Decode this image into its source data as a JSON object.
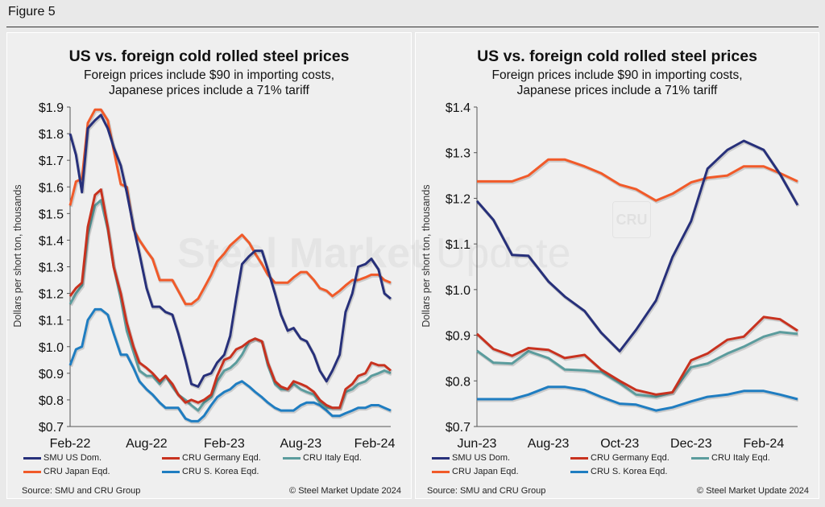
{
  "figure_title": "Figure 5",
  "watermark": {
    "text_bold": "Steel Market",
    "text_light": "Update",
    "logo": "CRU"
  },
  "colors": {
    "SMU US Dom.": "#27307a",
    "CRU Germany Eqd.": "#c8321f",
    "CRU Italy Eqd.": "#5b9c9d",
    "CRU Japan Eqd.": "#f15a29",
    "CRU S. Korea Eqd.": "#1f7dc1"
  },
  "panels": [
    {
      "title": "US vs. foreign cold rolled steel prices",
      "subtitle_line1": "Foreign prices include $90 in importing costs,",
      "subtitle_line2": "Japanese prices include a 71% tariff",
      "source": "Source: SMU and CRU Group",
      "copyright": "© Steel Market Update 2024",
      "legend": [
        "SMU US Dom.",
        "CRU Germany Eqd.",
        "CRU Italy Eqd.",
        "CRU Japan Eqd.",
        "CRU S. Korea Eqd."
      ]
    },
    {
      "title": "US vs. foreign cold rolled steel prices",
      "subtitle_line1": "Foreign prices include $90 in importing costs,",
      "subtitle_line2": "Japanese prices include a 71% tariff",
      "source": "Source: SMU and CRU Group",
      "copyright": "© Steel Market Update 2024",
      "legend": [
        "SMU US Dom.",
        "CRU Germany Eqd.",
        "CRU Italy Eqd.",
        "CRU Japan Eqd.",
        "CRU S. Korea Eqd."
      ]
    }
  ],
  "chart_data": [
    {
      "type": "line",
      "title": "US vs. foreign cold rolled steel prices",
      "ylabel": "Dollars per short ton, thousands",
      "ylim": [
        0.7,
        1.9
      ],
      "yticks": [
        "$0.7",
        "$0.8",
        "$0.9",
        "$1.0",
        "$1.1",
        "$1.2",
        "$1.3",
        "$1.4",
        "$1.5",
        "$1.6",
        "$1.7",
        "$1.8",
        "$1.9"
      ],
      "ytick_values": [
        0.7,
        0.8,
        0.9,
        1.0,
        1.1,
        1.2,
        1.3,
        1.4,
        1.5,
        1.6,
        1.7,
        1.8,
        1.9
      ],
      "xlim": [
        "2022-02-01",
        "2024-03-01"
      ],
      "xticks": [
        {
          "label": "Feb-22",
          "date": "2022-02-01"
        },
        {
          "label": "Aug-22",
          "date": "2022-08-01"
        },
        {
          "label": "Feb-23",
          "date": "2023-02-01"
        },
        {
          "label": "Aug-23",
          "date": "2023-08-01"
        },
        {
          "label": "Feb-24",
          "date": "2024-02-01"
        }
      ],
      "grid": false,
      "legend_position": "bottom",
      "x": [
        "2022-02-01",
        "2022-02-15",
        "2022-03-01",
        "2022-03-15",
        "2022-04-01",
        "2022-04-15",
        "2022-05-01",
        "2022-05-15",
        "2022-06-01",
        "2022-06-15",
        "2022-07-01",
        "2022-07-15",
        "2022-08-01",
        "2022-08-15",
        "2022-09-01",
        "2022-09-15",
        "2022-10-01",
        "2022-10-15",
        "2022-11-01",
        "2022-11-15",
        "2022-12-01",
        "2022-12-15",
        "2023-01-01",
        "2023-01-15",
        "2023-02-01",
        "2023-02-15",
        "2023-03-01",
        "2023-03-15",
        "2023-04-01",
        "2023-04-15",
        "2023-05-01",
        "2023-05-15",
        "2023-06-01",
        "2023-06-15",
        "2023-07-01",
        "2023-07-15",
        "2023-08-01",
        "2023-08-15",
        "2023-09-01",
        "2023-09-15",
        "2023-10-01",
        "2023-10-15",
        "2023-11-01",
        "2023-11-15",
        "2023-12-01",
        "2023-12-15",
        "2024-01-01",
        "2024-01-15",
        "2024-02-01",
        "2024-02-15",
        "2024-03-01"
      ],
      "series": [
        {
          "name": "SMU US Dom.",
          "values": [
            1.8,
            1.72,
            1.58,
            1.82,
            1.85,
            1.87,
            1.82,
            1.75,
            1.68,
            1.58,
            1.45,
            1.35,
            1.22,
            1.15,
            1.15,
            1.13,
            1.12,
            1.05,
            0.95,
            0.86,
            0.85,
            0.89,
            0.9,
            0.94,
            0.97,
            1.04,
            1.18,
            1.31,
            1.34,
            1.36,
            1.36,
            1.29,
            1.2,
            1.12,
            1.06,
            1.07,
            1.03,
            1.02,
            0.97,
            0.91,
            0.87,
            0.91,
            0.97,
            1.13,
            1.2,
            1.3,
            1.31,
            1.33,
            1.29,
            1.2,
            1.18
          ]
        },
        {
          "name": "CRU Germany Eqd.",
          "values": [
            1.19,
            1.22,
            1.24,
            1.45,
            1.57,
            1.59,
            1.45,
            1.3,
            1.2,
            1.09,
            1.0,
            0.94,
            0.92,
            0.9,
            0.87,
            0.89,
            0.86,
            0.82,
            0.79,
            0.8,
            0.79,
            0.8,
            0.82,
            0.89,
            0.95,
            0.96,
            0.99,
            1.0,
            1.02,
            1.03,
            1.02,
            0.94,
            0.87,
            0.85,
            0.84,
            0.87,
            0.86,
            0.85,
            0.83,
            0.8,
            0.78,
            0.77,
            0.77,
            0.84,
            0.86,
            0.89,
            0.9,
            0.94,
            0.93,
            0.93,
            0.91
          ]
        },
        {
          "name": "CRU Italy Eqd.",
          "values": [
            1.16,
            1.2,
            1.23,
            1.42,
            1.53,
            1.55,
            1.44,
            1.3,
            1.18,
            1.06,
            0.98,
            0.91,
            0.89,
            0.89,
            0.86,
            0.89,
            0.85,
            0.82,
            0.8,
            0.78,
            0.76,
            0.79,
            0.81,
            0.87,
            0.91,
            0.92,
            0.94,
            0.97,
            1.02,
            1.03,
            1.02,
            0.93,
            0.86,
            0.84,
            0.84,
            0.86,
            0.84,
            0.83,
            0.82,
            0.79,
            0.77,
            0.77,
            0.77,
            0.83,
            0.84,
            0.86,
            0.87,
            0.89,
            0.9,
            0.91,
            0.9
          ]
        },
        {
          "name": "CRU Japan Eqd.",
          "values": [
            1.53,
            1.62,
            1.63,
            1.84,
            1.89,
            1.89,
            1.85,
            1.74,
            1.61,
            1.6,
            1.44,
            1.4,
            1.36,
            1.33,
            1.25,
            1.25,
            1.25,
            1.21,
            1.16,
            1.16,
            1.18,
            1.22,
            1.27,
            1.32,
            1.35,
            1.38,
            1.4,
            1.42,
            1.39,
            1.35,
            1.31,
            1.27,
            1.24,
            1.24,
            1.24,
            1.26,
            1.28,
            1.28,
            1.25,
            1.22,
            1.21,
            1.19,
            1.21,
            1.23,
            1.25,
            1.25,
            1.26,
            1.27,
            1.27,
            1.25,
            1.24
          ]
        },
        {
          "name": "CRU S. Korea Eqd.",
          "values": [
            0.93,
            0.99,
            1.0,
            1.1,
            1.14,
            1.14,
            1.12,
            1.05,
            0.97,
            0.97,
            0.92,
            0.87,
            0.84,
            0.82,
            0.79,
            0.77,
            0.77,
            0.77,
            0.73,
            0.72,
            0.72,
            0.74,
            0.78,
            0.81,
            0.83,
            0.84,
            0.86,
            0.87,
            0.85,
            0.83,
            0.81,
            0.79,
            0.77,
            0.76,
            0.76,
            0.76,
            0.78,
            0.79,
            0.79,
            0.78,
            0.76,
            0.74,
            0.74,
            0.75,
            0.76,
            0.77,
            0.77,
            0.78,
            0.78,
            0.77,
            0.76
          ]
        }
      ]
    },
    {
      "type": "line",
      "title": "US vs. foreign cold rolled steel prices",
      "ylabel": "Dollars per short ton, thousands",
      "ylim": [
        0.7,
        1.4
      ],
      "yticks": [
        "$0.7",
        "$0.8",
        "$0.9",
        "$1.0",
        "$1.1",
        "$1.2",
        "$1.3",
        "$1.4"
      ],
      "ytick_values": [
        0.7,
        0.8,
        0.9,
        1.0,
        1.1,
        1.2,
        1.3,
        1.4
      ],
      "xlim": [
        "2023-06-01",
        "2024-03-01"
      ],
      "xticks": [
        {
          "label": "Jun-23",
          "date": "2023-06-01"
        },
        {
          "label": "Aug-23",
          "date": "2023-08-01"
        },
        {
          "label": "Oct-23",
          "date": "2023-10-01"
        },
        {
          "label": "Dec-23",
          "date": "2023-12-01"
        },
        {
          "label": "Feb-24",
          "date": "2024-02-01"
        }
      ],
      "grid": false,
      "legend_position": "bottom",
      "x": [
        "2023-06-01",
        "2023-06-15",
        "2023-07-01",
        "2023-07-15",
        "2023-08-01",
        "2023-08-15",
        "2023-09-01",
        "2023-09-15",
        "2023-10-01",
        "2023-10-15",
        "2023-11-01",
        "2023-11-15",
        "2023-12-01",
        "2023-12-15",
        "2024-01-01",
        "2024-01-15",
        "2024-02-01",
        "2024-02-15",
        "2024-03-01"
      ],
      "series": [
        {
          "name": "SMU US Dom.",
          "values": [
            1.194,
            1.153,
            1.076,
            1.074,
            1.018,
            0.985,
            0.953,
            0.906,
            0.865,
            0.912,
            0.976,
            1.071,
            1.15,
            1.265,
            1.306,
            1.326,
            1.306,
            1.253,
            1.185
          ]
        },
        {
          "name": "CRU Germany Eqd.",
          "values": [
            0.903,
            0.87,
            0.855,
            0.872,
            0.868,
            0.85,
            0.857,
            0.825,
            0.8,
            0.78,
            0.77,
            0.775,
            0.845,
            0.86,
            0.89,
            0.897,
            0.94,
            0.935,
            0.91
          ]
        },
        {
          "name": "CRU Italy Eqd.",
          "values": [
            0.866,
            0.84,
            0.838,
            0.865,
            0.85,
            0.825,
            0.823,
            0.82,
            0.795,
            0.77,
            0.765,
            0.775,
            0.83,
            0.838,
            0.86,
            0.875,
            0.897,
            0.907,
            0.903
          ]
        },
        {
          "name": "CRU Japan Eqd.",
          "values": [
            1.237,
            1.237,
            1.237,
            1.25,
            1.285,
            1.285,
            1.27,
            1.255,
            1.23,
            1.22,
            1.195,
            1.21,
            1.235,
            1.245,
            1.25,
            1.27,
            1.27,
            1.255,
            1.237
          ]
        },
        {
          "name": "CRU S. Korea Eqd.",
          "values": [
            0.76,
            0.76,
            0.76,
            0.77,
            0.787,
            0.787,
            0.78,
            0.765,
            0.75,
            0.748,
            0.735,
            0.742,
            0.755,
            0.765,
            0.77,
            0.778,
            0.778,
            0.77,
            0.76
          ]
        }
      ]
    }
  ]
}
